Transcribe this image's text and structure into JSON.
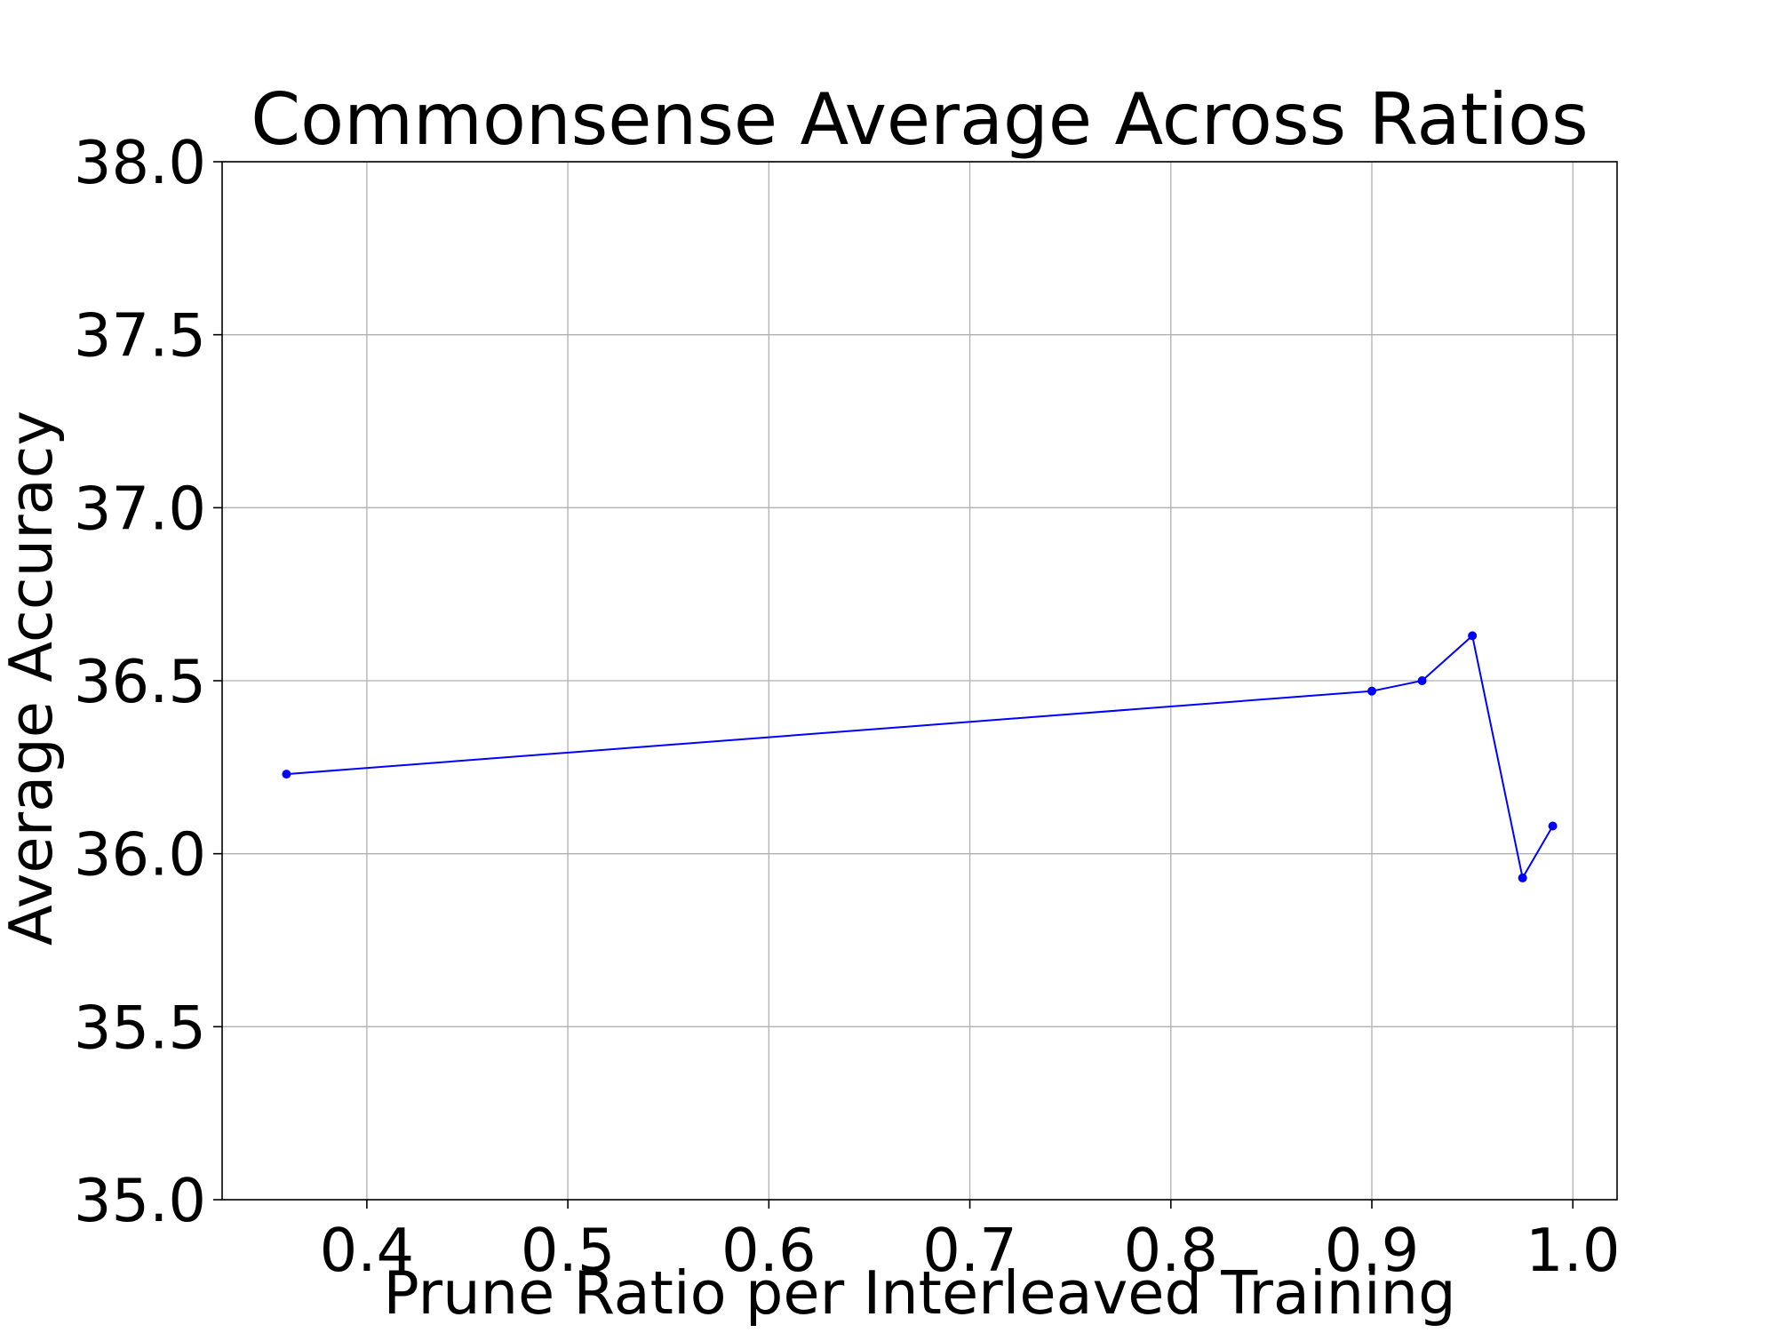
{
  "chart_data": {
    "type": "line",
    "title": "Commonsense Average Across Ratios",
    "xlabel": "Prune Ratio per Interleaved Training",
    "ylabel": "Average Accuracy",
    "xlim": [
      0.328,
      1.022
    ],
    "ylim": [
      35.0,
      38.0
    ],
    "x_ticks": [
      0.4,
      0.5,
      0.6,
      0.7,
      0.8,
      0.9,
      1.0
    ],
    "x_tick_labels": [
      "0.4",
      "0.5",
      "0.6",
      "0.7",
      "0.8",
      "0.9",
      "1.0"
    ],
    "y_ticks": [
      35.0,
      35.5,
      36.0,
      36.5,
      37.0,
      37.5,
      38.0
    ],
    "y_tick_labels": [
      "35.0",
      "35.5",
      "36.0",
      "36.5",
      "37.0",
      "37.5",
      "38.0"
    ],
    "grid": true,
    "series": [
      {
        "color": "#0000ff",
        "marker": "circle",
        "x": [
          0.36,
          0.9,
          0.925,
          0.95,
          0.975,
          0.99
        ],
        "y": [
          36.23,
          36.47,
          36.5,
          36.63,
          35.93,
          36.08
        ]
      }
    ]
  }
}
